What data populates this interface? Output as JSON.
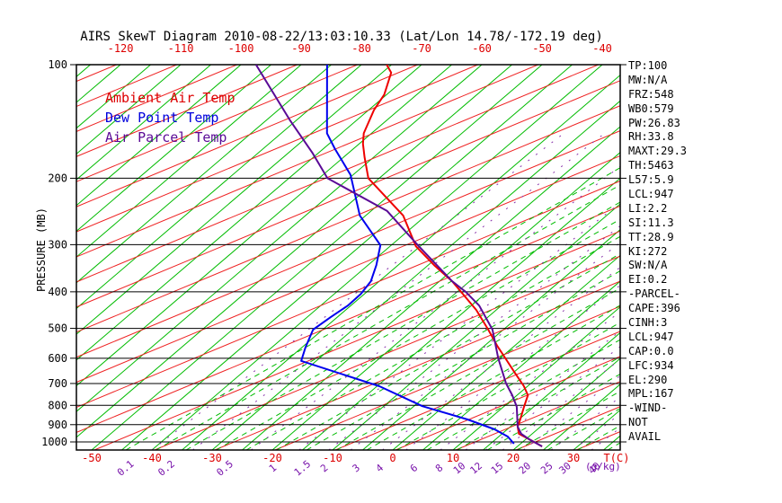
{
  "title": "AIRS SkewT Diagram 2010-08-22/13:03:10.33 (Lat/Lon 14.78/-172.19 deg)",
  "legend": [
    {
      "label": "Ambient Air Temp",
      "color": "#dd0000"
    },
    {
      "label": "Dew Point Temp",
      "color": "#0000dd"
    },
    {
      "label": "Air Parcel Temp",
      "color": "#5a0a96"
    }
  ],
  "axes": {
    "pressure_axis_label": "PRESSURE (MB)",
    "pressure_ticks": [
      100,
      200,
      300,
      400,
      500,
      600,
      700,
      800,
      900,
      1000
    ],
    "top_temp_ticks": [
      -120,
      -110,
      -100,
      -90,
      -80,
      -70,
      -60,
      -50,
      -40
    ],
    "bottom_temp_ticks": [
      -50,
      -40,
      -30,
      -20,
      -10,
      0,
      10,
      20,
      30
    ],
    "temp_unit_label": "T(C)",
    "mixing_ratio_ticks": [
      0.1,
      0.2,
      0.5,
      1,
      1.5,
      2,
      3,
      4,
      6,
      8,
      10,
      12,
      15,
      20,
      25,
      30,
      40
    ],
    "mixing_ratio_unit_label": "(g/kg)"
  },
  "stats": [
    "TP:100",
    "MW:N/A",
    "FRZ:548",
    "WB0:579",
    "PW:26.83",
    "RH:33.8",
    "MAXT:29.3",
    "TH:5463",
    "L57:5.9",
    "LCL:947",
    "LI:2.2",
    "SI:11.3",
    "TT:28.9",
    "KI:272",
    "SW:N/A",
    "EI:0.2",
    "-PARCEL-",
    "CAPE:396",
    "CINH:3",
    "LCL:947",
    "CAP:0.0",
    "LFC:934",
    "EL:290",
    "MPL:167",
    "-WIND-",
    "NOT",
    "AVAIL"
  ],
  "colors": {
    "isotherm_green": "#00bb00",
    "dry_adiabat_red": "#ee2222",
    "moist_adiabat_green": "#00bb00",
    "mixing_ratio_purple": "#8833aa",
    "axis_black": "#000000",
    "tick_label_red": "#dd0000",
    "mixing_label_purple": "#7711aa"
  },
  "chart_data": {
    "type": "line",
    "title": "AIRS SkewT Diagram 2010-08-22/13:03:10.33 (Lat/Lon 14.78/-172.19 deg)",
    "x_axis": {
      "label": "T(C)",
      "skewed": true,
      "bottom_range_c": [
        -50,
        30
      ],
      "top_range_c": [
        -120,
        -40
      ]
    },
    "y_axis": {
      "label": "PRESSURE (MB)",
      "scale": "log",
      "range_mb": [
        100,
        1050
      ]
    },
    "grid": {
      "isotherms_every_c": 5,
      "pressure_lines_every_mb": 100
    },
    "legend_position": "top-left-inside",
    "series": [
      {
        "name": "Ambient Air Temp",
        "color": "#ee0000",
        "style": "solid",
        "points_p_t": [
          [
            100,
            -75.8
          ],
          [
            105,
            -73.5
          ],
          [
            120,
            -70.4
          ],
          [
            132,
            -69.1
          ],
          [
            152,
            -66.3
          ],
          [
            162,
            -64.4
          ],
          [
            176,
            -61.5
          ],
          [
            200,
            -56.8
          ],
          [
            251,
            -43.8
          ],
          [
            303,
            -35.7
          ],
          [
            340,
            -29.0
          ],
          [
            375,
            -22.9
          ],
          [
            405,
            -18.7
          ],
          [
            447,
            -13.3
          ],
          [
            504,
            -7.5
          ],
          [
            556,
            -2.9
          ],
          [
            604,
            1.2
          ],
          [
            656,
            5.3
          ],
          [
            712,
            9.4
          ],
          [
            752,
            11.8
          ],
          [
            807,
            13.4
          ],
          [
            867,
            15.1
          ],
          [
            911,
            16.2
          ],
          [
            952,
            17.8
          ],
          [
            989,
            21.0
          ],
          [
            1028,
            24.1
          ]
        ]
      },
      {
        "name": "Dew Point Temp",
        "color": "#0000ee",
        "style": "solid",
        "points_p_t": [
          [
            100,
            -85.7
          ],
          [
            152,
            -72.4
          ],
          [
            167,
            -68.1
          ],
          [
            196,
            -60.4
          ],
          [
            251,
            -51.0
          ],
          [
            301,
            -41.8
          ],
          [
            340,
            -38.6
          ],
          [
            375,
            -36.4
          ],
          [
            405,
            -35.6
          ],
          [
            435,
            -35.5
          ],
          [
            467,
            -36.1
          ],
          [
            504,
            -36.6
          ],
          [
            562,
            -34.4
          ],
          [
            610,
            -32.5
          ],
          [
            712,
            -14.6
          ],
          [
            804,
            -3.6
          ],
          [
            872,
            6.5
          ],
          [
            926,
            12.9
          ],
          [
            968,
            16.5
          ],
          [
            1011,
            18.9
          ]
        ]
      },
      {
        "name": "Air Parcel Temp",
        "color": "#5a0a96",
        "style": "solid",
        "points_p_t": [
          [
            100,
            -97.5
          ],
          [
            140,
            -81.2
          ],
          [
            171,
            -71.1
          ],
          [
            200,
            -63.6
          ],
          [
            244,
            -47.4
          ],
          [
            302,
            -35.4
          ],
          [
            375,
            -22.9
          ],
          [
            400,
            -18.6
          ],
          [
            435,
            -13.7
          ],
          [
            504,
            -6.8
          ],
          [
            600,
            -0.3
          ],
          [
            700,
            5.9
          ],
          [
            752,
            9.2
          ],
          [
            807,
            12.2
          ],
          [
            911,
            16.2
          ],
          [
            952,
            18.2
          ],
          [
            986,
            20.7
          ],
          [
            1028,
            24.1
          ]
        ]
      }
    ]
  }
}
